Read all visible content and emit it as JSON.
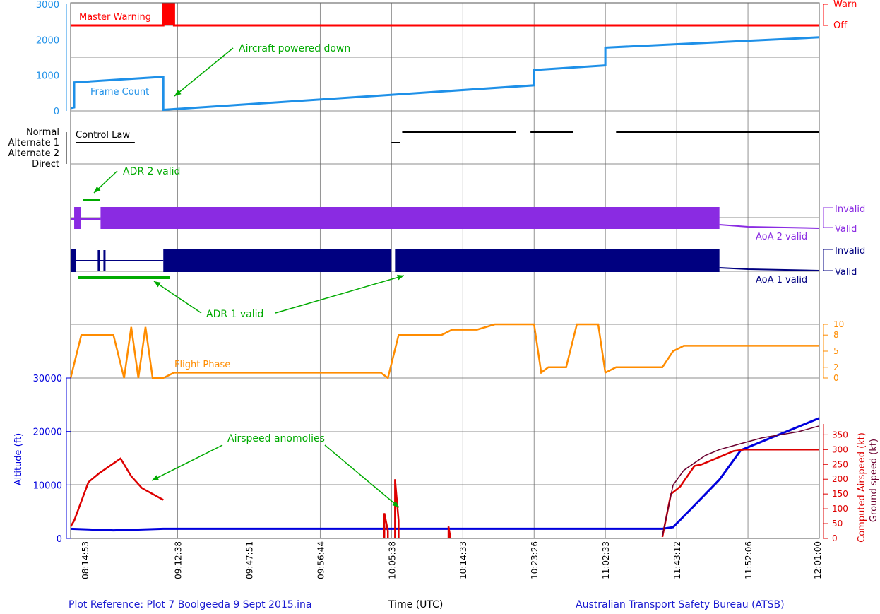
{
  "footer": {
    "plot_reference": "Plot Reference: Plot 7 Boolgeeda 9 Sept 2015.ina",
    "x_axis_title": "Time (UTC)",
    "agency": "Australian Transport Safety Bureau (ATSB)"
  },
  "colors": {
    "master_warning": "#ff0000",
    "frame_count": "#1e90e8",
    "control_law": "#000000",
    "aoa2": "#8a2be2",
    "aoa1": "#000080",
    "flight_phase": "#ff8c00",
    "altitude": "#0000dd",
    "airspeed": "#dd0000",
    "ground_speed": "#6b0030",
    "annotation": "#00aa00",
    "grid": "#555555"
  },
  "chart_data": {
    "type": "line",
    "x_ticks": [
      "08:14:53",
      "09:12:38",
      "09:47:51",
      "09:56:44",
      "10:05:38",
      "10:14:33",
      "10:23:26",
      "11:02:33",
      "11:43:12",
      "11:52:06",
      "12:01:00"
    ],
    "annotations": [
      "Aircraft powered down",
      "ADR 2 valid",
      "ADR 1 valid",
      "Airspeed anomolies"
    ],
    "panels": {
      "master_warning": {
        "label": "Master Warning",
        "states": [
          "Warn",
          "Off"
        ],
        "series": [
          {
            "name": "Master Warning",
            "x": [
              0,
              1.3,
              1.3,
              1.45,
              1.45,
              10.5
            ],
            "y": [
              0,
              0,
              1,
              1,
              0,
              0
            ]
          }
        ]
      },
      "frame_count": {
        "label": "Frame Count",
        "ticks": [
          "0",
          "1000",
          "2000",
          "3000"
        ],
        "ylim": [
          0,
          3000
        ],
        "series": [
          {
            "name": "Frame Count",
            "x": [
              0,
              0.05,
              0.05,
              1.3,
              1.3,
              6.5,
              6.5,
              7.5,
              7.5,
              10.5
            ],
            "y": [
              80,
              100,
              800,
              960,
              30,
              720,
              1150,
              1280,
              1780,
              2070
            ]
          }
        ]
      },
      "control_law": {
        "label": "Control Law",
        "states": [
          "Normal",
          "Alternate 1",
          "Alternate 2",
          "Direct"
        ]
      },
      "aoa2": {
        "label": "AoA 2 valid",
        "states": [
          "Invalid",
          "Valid"
        ]
      },
      "aoa1": {
        "label": "AoA 1 valid",
        "states": [
          "Invalid",
          "Valid"
        ]
      },
      "flight_phase": {
        "label": "Flight Phase",
        "ticks": [
          "0",
          "2",
          "5",
          "8",
          "10"
        ],
        "ylim": [
          0,
          10
        ],
        "series": [
          {
            "name": "Flight Phase",
            "x": [
              0,
              0.15,
              0.6,
              0.75,
              0.85,
              0.95,
              1.05,
              1.15,
              1.25,
              1.3,
              1.45,
              4.35,
              4.45,
              4.6,
              5.2,
              5.35,
              5.7,
              5.95,
              6.2,
              6.5,
              6.6,
              6.7,
              6.95,
              7.1,
              7.4,
              7.5,
              7.65,
              8.3,
              8.45,
              8.6,
              10.5
            ],
            "y": [
              0,
              8,
              8,
              0,
              9.5,
              0,
              9.5,
              0,
              0,
              0,
              1,
              1,
              0,
              8,
              8,
              9,
              9,
              10,
              10,
              10,
              1,
              2,
              2,
              10,
              10,
              1,
              2,
              2,
              5,
              6,
              6
            ]
          }
        ]
      },
      "altitude": {
        "label": "Altitude (ft)",
        "ticks": [
          "0",
          "10000",
          "20000",
          "30000"
        ],
        "ylim": [
          0,
          30000
        ],
        "series": [
          {
            "name": "Altitude",
            "x": [
              0,
              0.6,
              1.3,
              4.5,
              5.5,
              8.3,
              8.45,
              8.7,
              9.1,
              9.4,
              10.5
            ],
            "y": [
              1800,
              1500,
              1800,
              1800,
              1800,
              1800,
              2100,
              5500,
              11000,
              16500,
              22500
            ]
          }
        ]
      },
      "airspeed": {
        "label": "Computed Airspeed (kt)",
        "ticks": [
          "0",
          "50",
          "100",
          "150",
          "200",
          "250",
          "300",
          "350"
        ],
        "ylim": [
          0,
          370
        ],
        "series": [
          {
            "name": "Computed Airspeed",
            "x": [
              0,
              0.05,
              0.25,
              0.4,
              0.7,
              0.85,
              1.0,
              1.3
            ],
            "y": [
              40,
              60,
              190,
              220,
              270,
              210,
              170,
              130
            ]
          }
        ]
      },
      "ground_speed": {
        "label": "Ground speed (kt)",
        "series": [
          {
            "name": "Ground speed",
            "x": [
              8.3,
              8.45,
              8.6,
              8.9,
              9.1,
              9.4,
              9.7,
              10.2,
              10.5
            ],
            "y": [
              10,
              180,
              230,
              280,
              300,
              320,
              340,
              360,
              380
            ]
          }
        ]
      }
    }
  }
}
